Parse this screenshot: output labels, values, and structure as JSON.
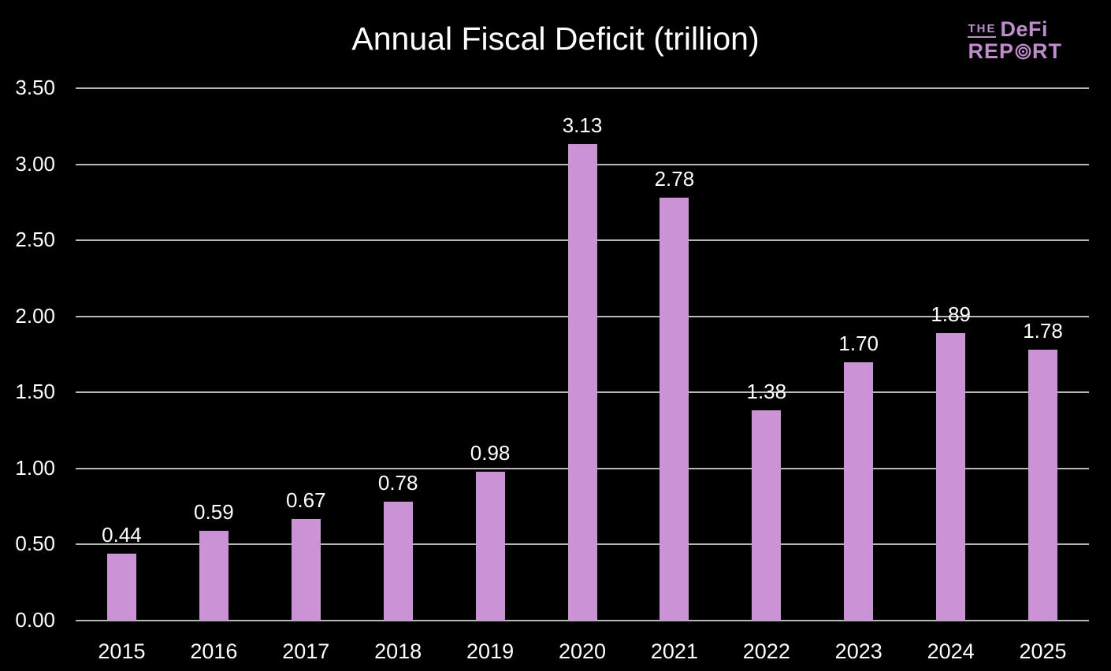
{
  "chart_data": {
    "type": "bar",
    "title": "Annual Fiscal Deficit (trillion)",
    "categories": [
      "2015",
      "2016",
      "2017",
      "2018",
      "2019",
      "2020",
      "2021",
      "2022",
      "2023",
      "2024",
      "2025"
    ],
    "values": [
      0.44,
      0.59,
      0.67,
      0.78,
      0.98,
      3.13,
      2.78,
      1.38,
      1.7,
      1.89,
      1.78
    ],
    "value_labels": [
      "0.44",
      "0.59",
      "0.67",
      "0.78",
      "0.98",
      "3.13",
      "2.78",
      "1.38",
      "1.70",
      "1.89",
      "1.78"
    ],
    "xlabel": "",
    "ylabel": "",
    "ylim": [
      0,
      3.5
    ],
    "ytick_step": 0.5,
    "ytick_labels": [
      "0.00",
      "0.50",
      "1.00",
      "1.50",
      "2.00",
      "2.50",
      "3.00",
      "3.50"
    ],
    "grid": true,
    "legend": "none"
  },
  "logo": {
    "the": "THE",
    "defi": "DeFi",
    "rep": "REP",
    "rt": "RT",
    "icon": "target-icon"
  },
  "colors": {
    "background": "#000000",
    "bar": "#cc92d6",
    "gridline": "#b7b7b7",
    "text": "#ffffff",
    "logo": "#bf8ccc"
  }
}
